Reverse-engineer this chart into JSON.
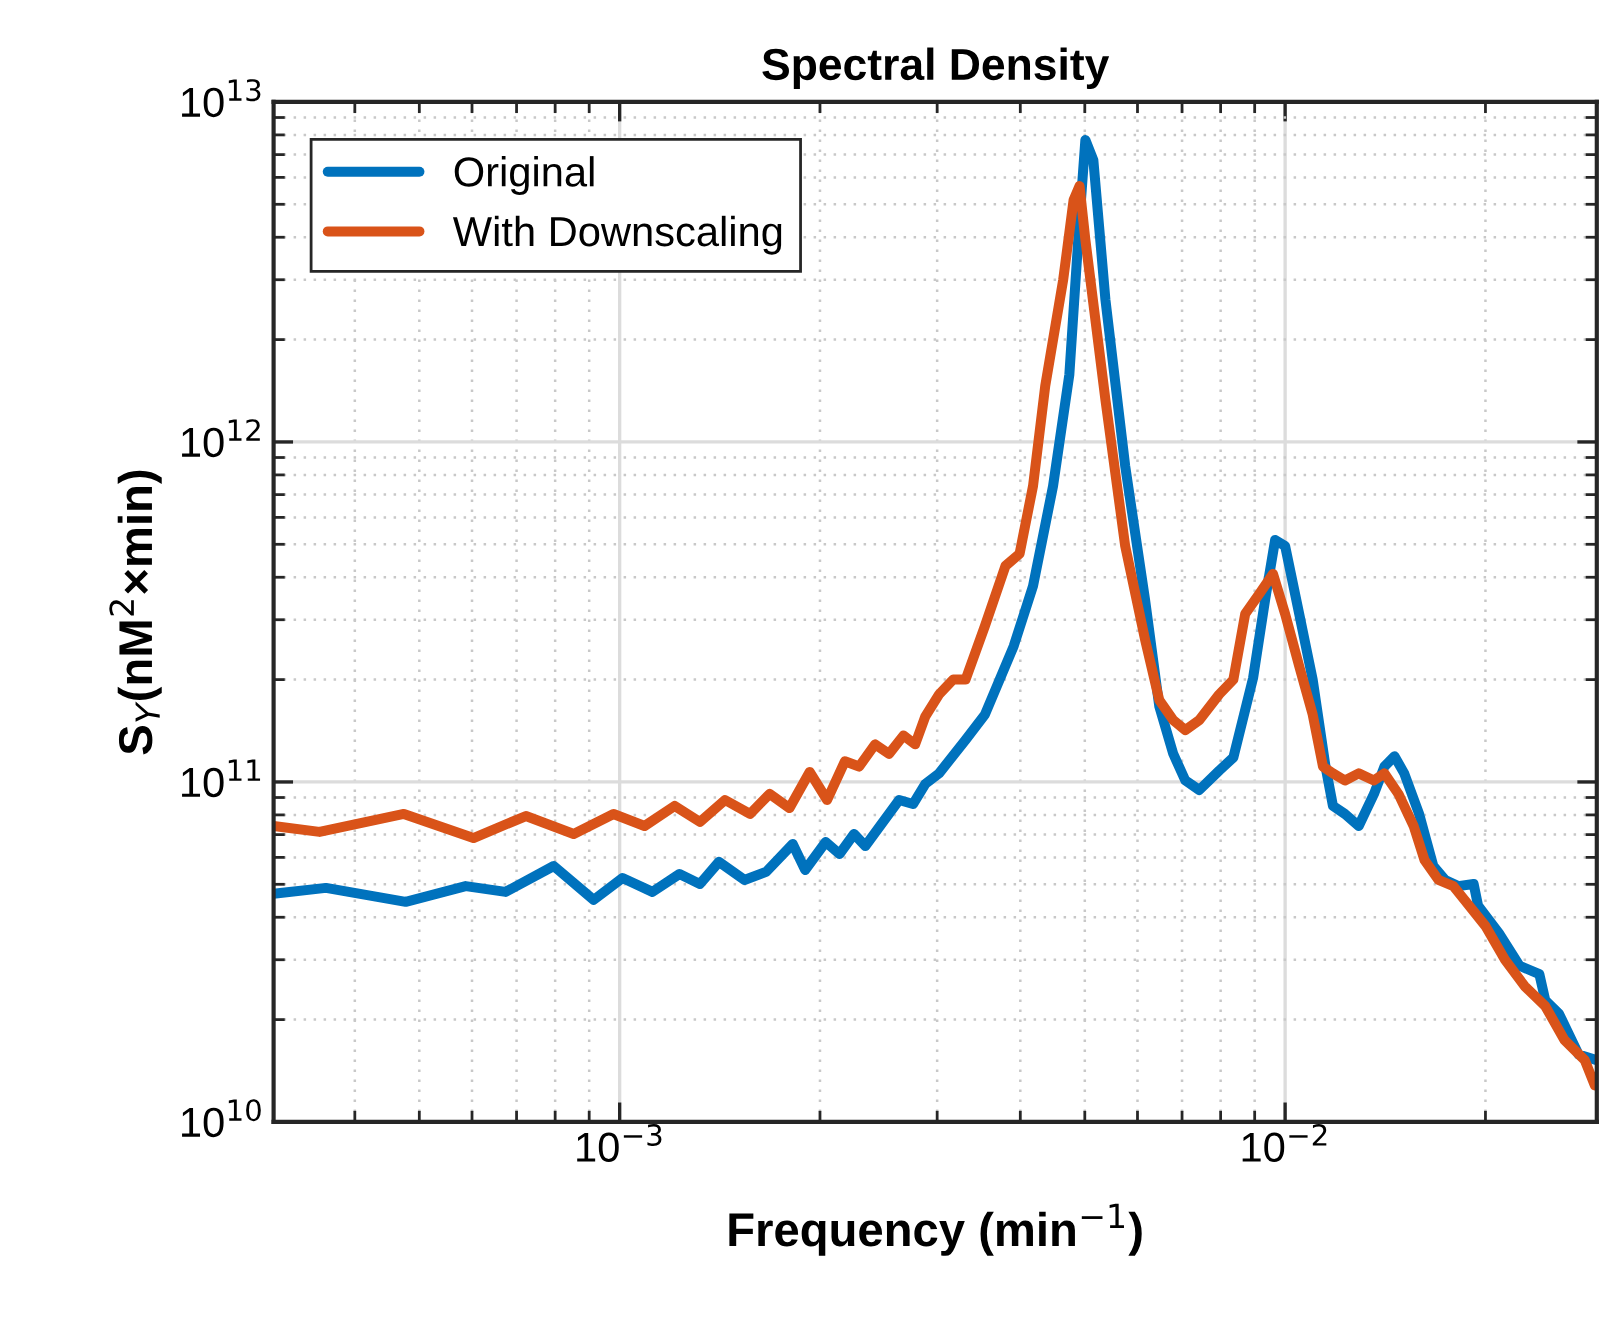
{
  "chart_data": {
    "type": "line",
    "title": "Spectral Density",
    "xlabel": "Frequency (min$^{−1}$)",
    "ylabel": "S$_{Y}$(nM$^{2}$×min)",
    "log": "xy",
    "grid": true,
    "legend": "top left",
    "line_style": "solid",
    "marker": "none",
    "xlim": [
      0.000302,
      0.0294
    ],
    "xticks": [
      {
        "value": 0.001,
        "label": "10$^{−3}$"
      },
      {
        "value": 0.01,
        "label": "10$^{−2}$"
      }
    ],
    "ylim": [
      10000000000.0,
      10000000000000.0
    ],
    "yticks": [
      {
        "value": 10000000000.0,
        "label": "10$^{10}$"
      },
      {
        "value": 100000000000.0,
        "label": "10$^{11}$"
      },
      {
        "value": 1000000000000.0,
        "label": "10$^{12}$"
      },
      {
        "value": 10000000000000.0,
        "label": "10$^{13}$"
      }
    ],
    "series": [
      {
        "name": "Original",
        "color": "#0072bd",
        "x": [
          0.000302,
          0.000362,
          0.000477,
          0.000587,
          0.000674,
          0.000796,
          0.000914,
          0.00101,
          0.00112,
          0.00123,
          0.00132,
          0.00141,
          0.00154,
          0.00166,
          0.00182,
          0.0019,
          0.00204,
          0.00214,
          0.00225,
          0.00234,
          0.00263,
          0.00276,
          0.00288,
          0.00302,
          0.00331,
          0.00354,
          0.00391,
          0.00418,
          0.00448,
          0.00474,
          0.00491,
          0.00501,
          0.00515,
          0.00537,
          0.00575,
          0.00616,
          0.00647,
          0.00679,
          0.00708,
          0.00743,
          0.00796,
          0.00836,
          0.00895,
          0.00933,
          0.00966,
          0.01,
          0.0105,
          0.011,
          0.0115,
          0.0118,
          0.0123,
          0.0129,
          0.0136,
          0.0141,
          0.0146,
          0.0151,
          0.0159,
          0.0167,
          0.0174,
          0.0182,
          0.0192,
          0.0195,
          0.021,
          0.0225,
          0.0241,
          0.0246,
          0.0258,
          0.0276,
          0.0294
        ],
        "values": [
          46900000000.0,
          48800000000.0,
          44400000000.0,
          49400000000.0,
          47500000000.0,
          56600000000.0,
          45000000000.0,
          52200000000.0,
          47500000000.0,
          53600000000.0,
          50100000000.0,
          58200000000.0,
          51500000000.0,
          54400000000.0,
          65700000000.0,
          55100000000.0,
          66600000000.0,
          61400000000.0,
          70300000000.0,
          64800000000.0,
          88500000000.0,
          86100000000.0,
          98700000000.0,
          106000000000.0,
          133000000000.0,
          158000000000.0,
          251000000000.0,
          377000000000.0,
          742000000000.0,
          1580000000000.0,
          4500000000000.0,
          7730000000000.0,
          6750000000000.0,
          2620000000000.0,
          850000000000.0,
          343000000000.0,
          167000000000.0,
          121000000000.0,
          101000000000.0,
          94700000000.0,
          108000000000.0,
          118000000000.0,
          202000000000.0,
          343000000000.0,
          515000000000.0,
          494000000000.0,
          312000000000.0,
          200000000000.0,
          111000000000.0,
          85000000000.0,
          80500000000.0,
          74200000000.0,
          92200000000.0,
          111000000000.0,
          119000000000.0,
          106000000000.0,
          80500000000.0,
          56600000000.0,
          51500000000.0,
          49400000000.0,
          50100000000.0,
          43200000000.0,
          35700000000.0,
          28800000000.0,
          27200000000.0,
          22800000000.0,
          20800000000.0,
          15800000000.0,
          15200000000.0
        ]
      },
      {
        "name": "With Downscaling",
        "color": "#d95319",
        "x": [
          0.000302,
          0.000354,
          0.000474,
          0.000603,
          0.000723,
          0.000853,
          0.000979,
          0.00109,
          0.00121,
          0.00132,
          0.00144,
          0.00157,
          0.00168,
          0.0018,
          0.00193,
          0.00205,
          0.00218,
          0.00229,
          0.00242,
          0.00254,
          0.00267,
          0.00278,
          0.00288,
          0.00302,
          0.00317,
          0.00331,
          0.00354,
          0.0038,
          0.00399,
          0.00418,
          0.00436,
          0.00464,
          0.00481,
          0.00491,
          0.00501,
          0.00537,
          0.00575,
          0.00616,
          0.00647,
          0.00679,
          0.00708,
          0.00743,
          0.00796,
          0.00836,
          0.00871,
          0.00914,
          0.00959,
          0.01,
          0.0105,
          0.011,
          0.0114,
          0.0118,
          0.0123,
          0.0129,
          0.0136,
          0.0141,
          0.0148,
          0.0156,
          0.0162,
          0.017,
          0.0179,
          0.0186,
          0.02,
          0.0214,
          0.0229,
          0.0246,
          0.0263,
          0.0282,
          0.0292
        ],
        "values": [
          74200000000.0,
          71300000000.0,
          80500000000.0,
          68400000000.0,
          79400000000.0,
          70300000000.0,
          80500000000.0,
          74200000000.0,
          85000000000.0,
          76300000000.0,
          88500000000.0,
          80500000000.0,
          92200000000.0,
          83800000000.0,
          107000000000.0,
          88500000000.0,
          115000000000.0,
          111000000000.0,
          129000000000.0,
          121000000000.0,
          137000000000.0,
          129000000000.0,
          156000000000.0,
          181000000000.0,
          200000000000.0,
          200000000000.0,
          288000000000.0,
          432000000000.0,
          469000000000.0,
          742000000000.0,
          1460000000000.0,
          3000000000000.0,
          5150000000000.0,
          5660000000000.0,
          3930000000000.0,
          1330000000000.0,
          494000000000.0,
          262000000000.0,
          174000000000.0,
          152000000000.0,
          142000000000.0,
          152000000000.0,
          181000000000.0,
          200000000000.0,
          312000000000.0,
          357000000000.0,
          409000000000.0,
          312000000000.0,
          219000000000.0,
          158000000000.0,
          111000000000.0,
          106000000000.0,
          101000000000.0,
          106000000000.0,
          101000000000.0,
          106000000000.0,
          92200000000.0,
          74200000000.0,
          58900000000.0,
          51500000000.0,
          49400000000.0,
          45000000000.0,
          37700000000.0,
          30000000000.0,
          25100000000.0,
          21900000000.0,
          17400000000.0,
          15200000000.0,
          12800000000.0
        ]
      }
    ]
  }
}
